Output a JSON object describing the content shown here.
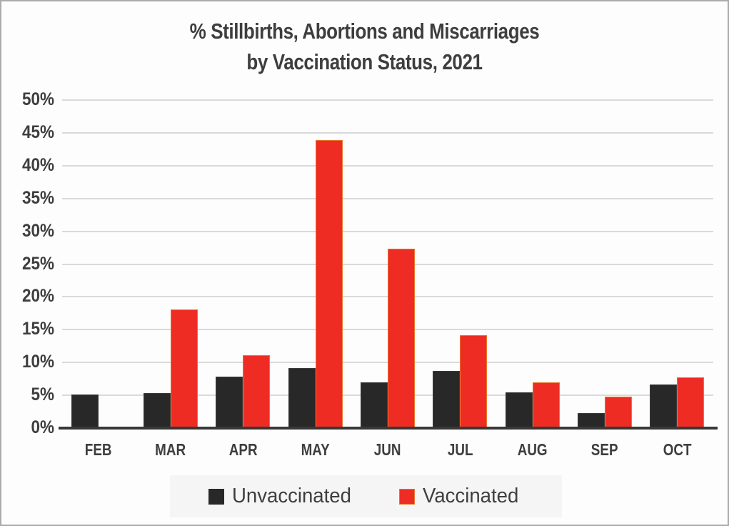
{
  "frame": {
    "background": "#FDFDFD",
    "border_color": "#ABABAB"
  },
  "chart_data": {
    "type": "bar",
    "title_lines": [
      "% Stillbirths, Abortions and Miscarriages",
      "by Vaccination Status, 2021"
    ],
    "categories": [
      "FEB",
      "MAR",
      "APR",
      "MAY",
      "JUN",
      "JUL",
      "AUG",
      "SEP",
      "OCT"
    ],
    "series": [
      {
        "name": "Unvaccinated",
        "color": "#282828",
        "values": [
          5.1,
          5.3,
          7.8,
          9.1,
          7.0,
          8.7,
          5.5,
          2.3,
          6.6
        ]
      },
      {
        "name": "Vaccinated",
        "color": "#EE2C23",
        "values": [
          null,
          18.1,
          11.1,
          43.9,
          27.3,
          14.2,
          7.0,
          4.8,
          7.7
        ]
      }
    ],
    "y_ticks": [
      {
        "label": "50%",
        "value": 50
      },
      {
        "label": "45%",
        "value": 45
      },
      {
        "label": "40%",
        "value": 40
      },
      {
        "label": "35%",
        "value": 35
      },
      {
        "label": "30%",
        "value": 30
      },
      {
        "label": "25%",
        "value": 25
      },
      {
        "label": "20%",
        "value": 20
      },
      {
        "label": "15%",
        "value": 15
      },
      {
        "label": "10%",
        "value": 10
      },
      {
        "label": "5%",
        "value": 5
      },
      {
        "label": "0%",
        "value": 0
      }
    ],
    "ylim": [
      0,
      50
    ],
    "xlabel": "",
    "ylabel": "",
    "grid": true,
    "legend_position": "bottom",
    "colors": {
      "text": "#3E3E3E",
      "gridline": "#DADADA",
      "axis_line": "#383838",
      "legend_background": "#F5F5F5",
      "unvaccinated_bar": "#282828",
      "vaccinated_bar": "#EE2C23"
    }
  }
}
